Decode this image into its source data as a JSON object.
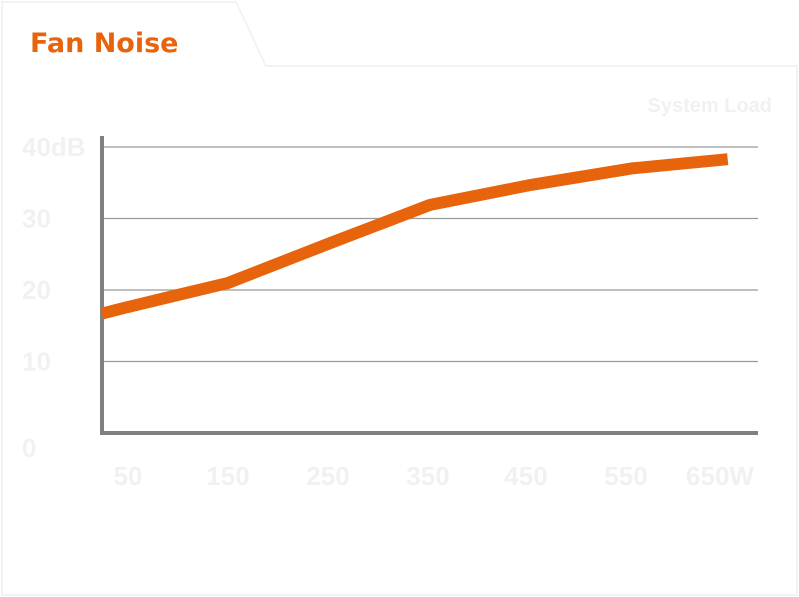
{
  "chart_data": {
    "type": "line",
    "title": "Fan Noise",
    "legend_caption": "System Load",
    "x": [
      50,
      150,
      250,
      350,
      450,
      550,
      650
    ],
    "x_tick_labels": [
      "50",
      "150",
      "250",
      "350",
      "450",
      "550",
      "650W"
    ],
    "xlim": [
      25,
      675
    ],
    "y_ticks": [
      0,
      10,
      20,
      30,
      40
    ],
    "y_tick_labels": [
      "0",
      "10",
      "20",
      "30",
      "40dB"
    ],
    "ylim": [
      0,
      40
    ],
    "grid": true,
    "series": [
      {
        "points": [
          [
            25,
            16.7
          ],
          [
            50,
            17.6
          ],
          [
            100,
            19.3
          ],
          [
            150,
            21.0
          ],
          [
            250,
            26.5
          ],
          [
            350,
            31.9
          ],
          [
            450,
            34.7
          ],
          [
            550,
            37.0
          ],
          [
            645,
            38.3
          ]
        ]
      }
    ]
  },
  "colors": {
    "accent": "#e8640c",
    "axis": "#808080",
    "grid": "#9a9a9a",
    "faint_text": "#f1f1f1",
    "frame": "#f4f4f4"
  }
}
